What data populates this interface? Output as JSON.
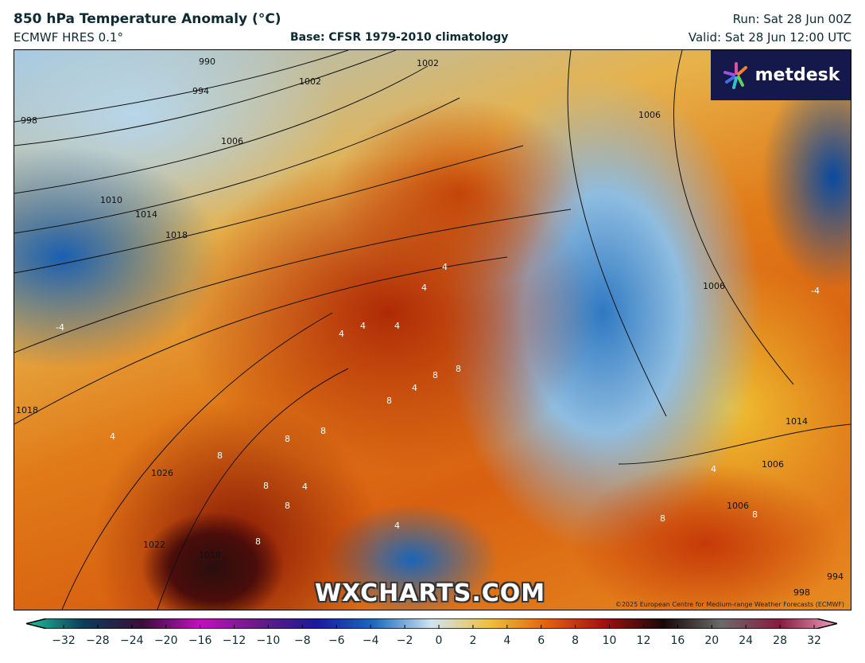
{
  "header": {
    "title": "850 hPa Temperature Anomaly (°C)",
    "model": "ECMWF HRES 0.1°",
    "base": "Base: CFSR 1979-2010 climatology",
    "run": "Run: Sat 28 Jun 00Z",
    "valid": "Valid: Sat 28 Jun 12:00 UTC"
  },
  "map": {
    "logo": "metdesk",
    "watermark": "WXCHARTS.COM",
    "copyright": "©2025 European Centre for Medium-range Weather Forecasts (ECMWF)",
    "isobar_labels": [
      "990",
      "994",
      "998",
      "1002",
      "1002",
      "1006",
      "1010",
      "1014",
      "1018",
      "1018",
      "1026",
      "1022",
      "1018",
      "1006",
      "1006",
      "1014",
      "1006",
      "1006",
      "994",
      "998"
    ],
    "anomaly_labels": [
      "4",
      "4",
      "4",
      "4",
      "4",
      "4",
      "8",
      "8",
      "8",
      "8",
      "8",
      "8",
      "8",
      "8",
      "4",
      "4",
      "8",
      "-4",
      "-4",
      "4",
      "4",
      "8",
      "8"
    ]
  },
  "colorbar": {
    "ticks": [
      "−32",
      "−28",
      "−24",
      "−20",
      "−16",
      "−12",
      "−10",
      "−8",
      "−6",
      "−4",
      "−2",
      "0",
      "2",
      "4",
      "6",
      "8",
      "10",
      "12",
      "16",
      "20",
      "24",
      "28",
      "32"
    ],
    "colors": [
      "#1fc29a",
      "#0b3c5a",
      "#3a0e3a",
      "#c010c0",
      "#6a1a8a",
      "#1a1a9a",
      "#1a6ac0",
      "#cfe4f2",
      "#f0c040",
      "#e06010",
      "#a01010",
      "#1a0808",
      "#6a6a6a",
      "#8a1a40",
      "#f0a0c0"
    ]
  }
}
